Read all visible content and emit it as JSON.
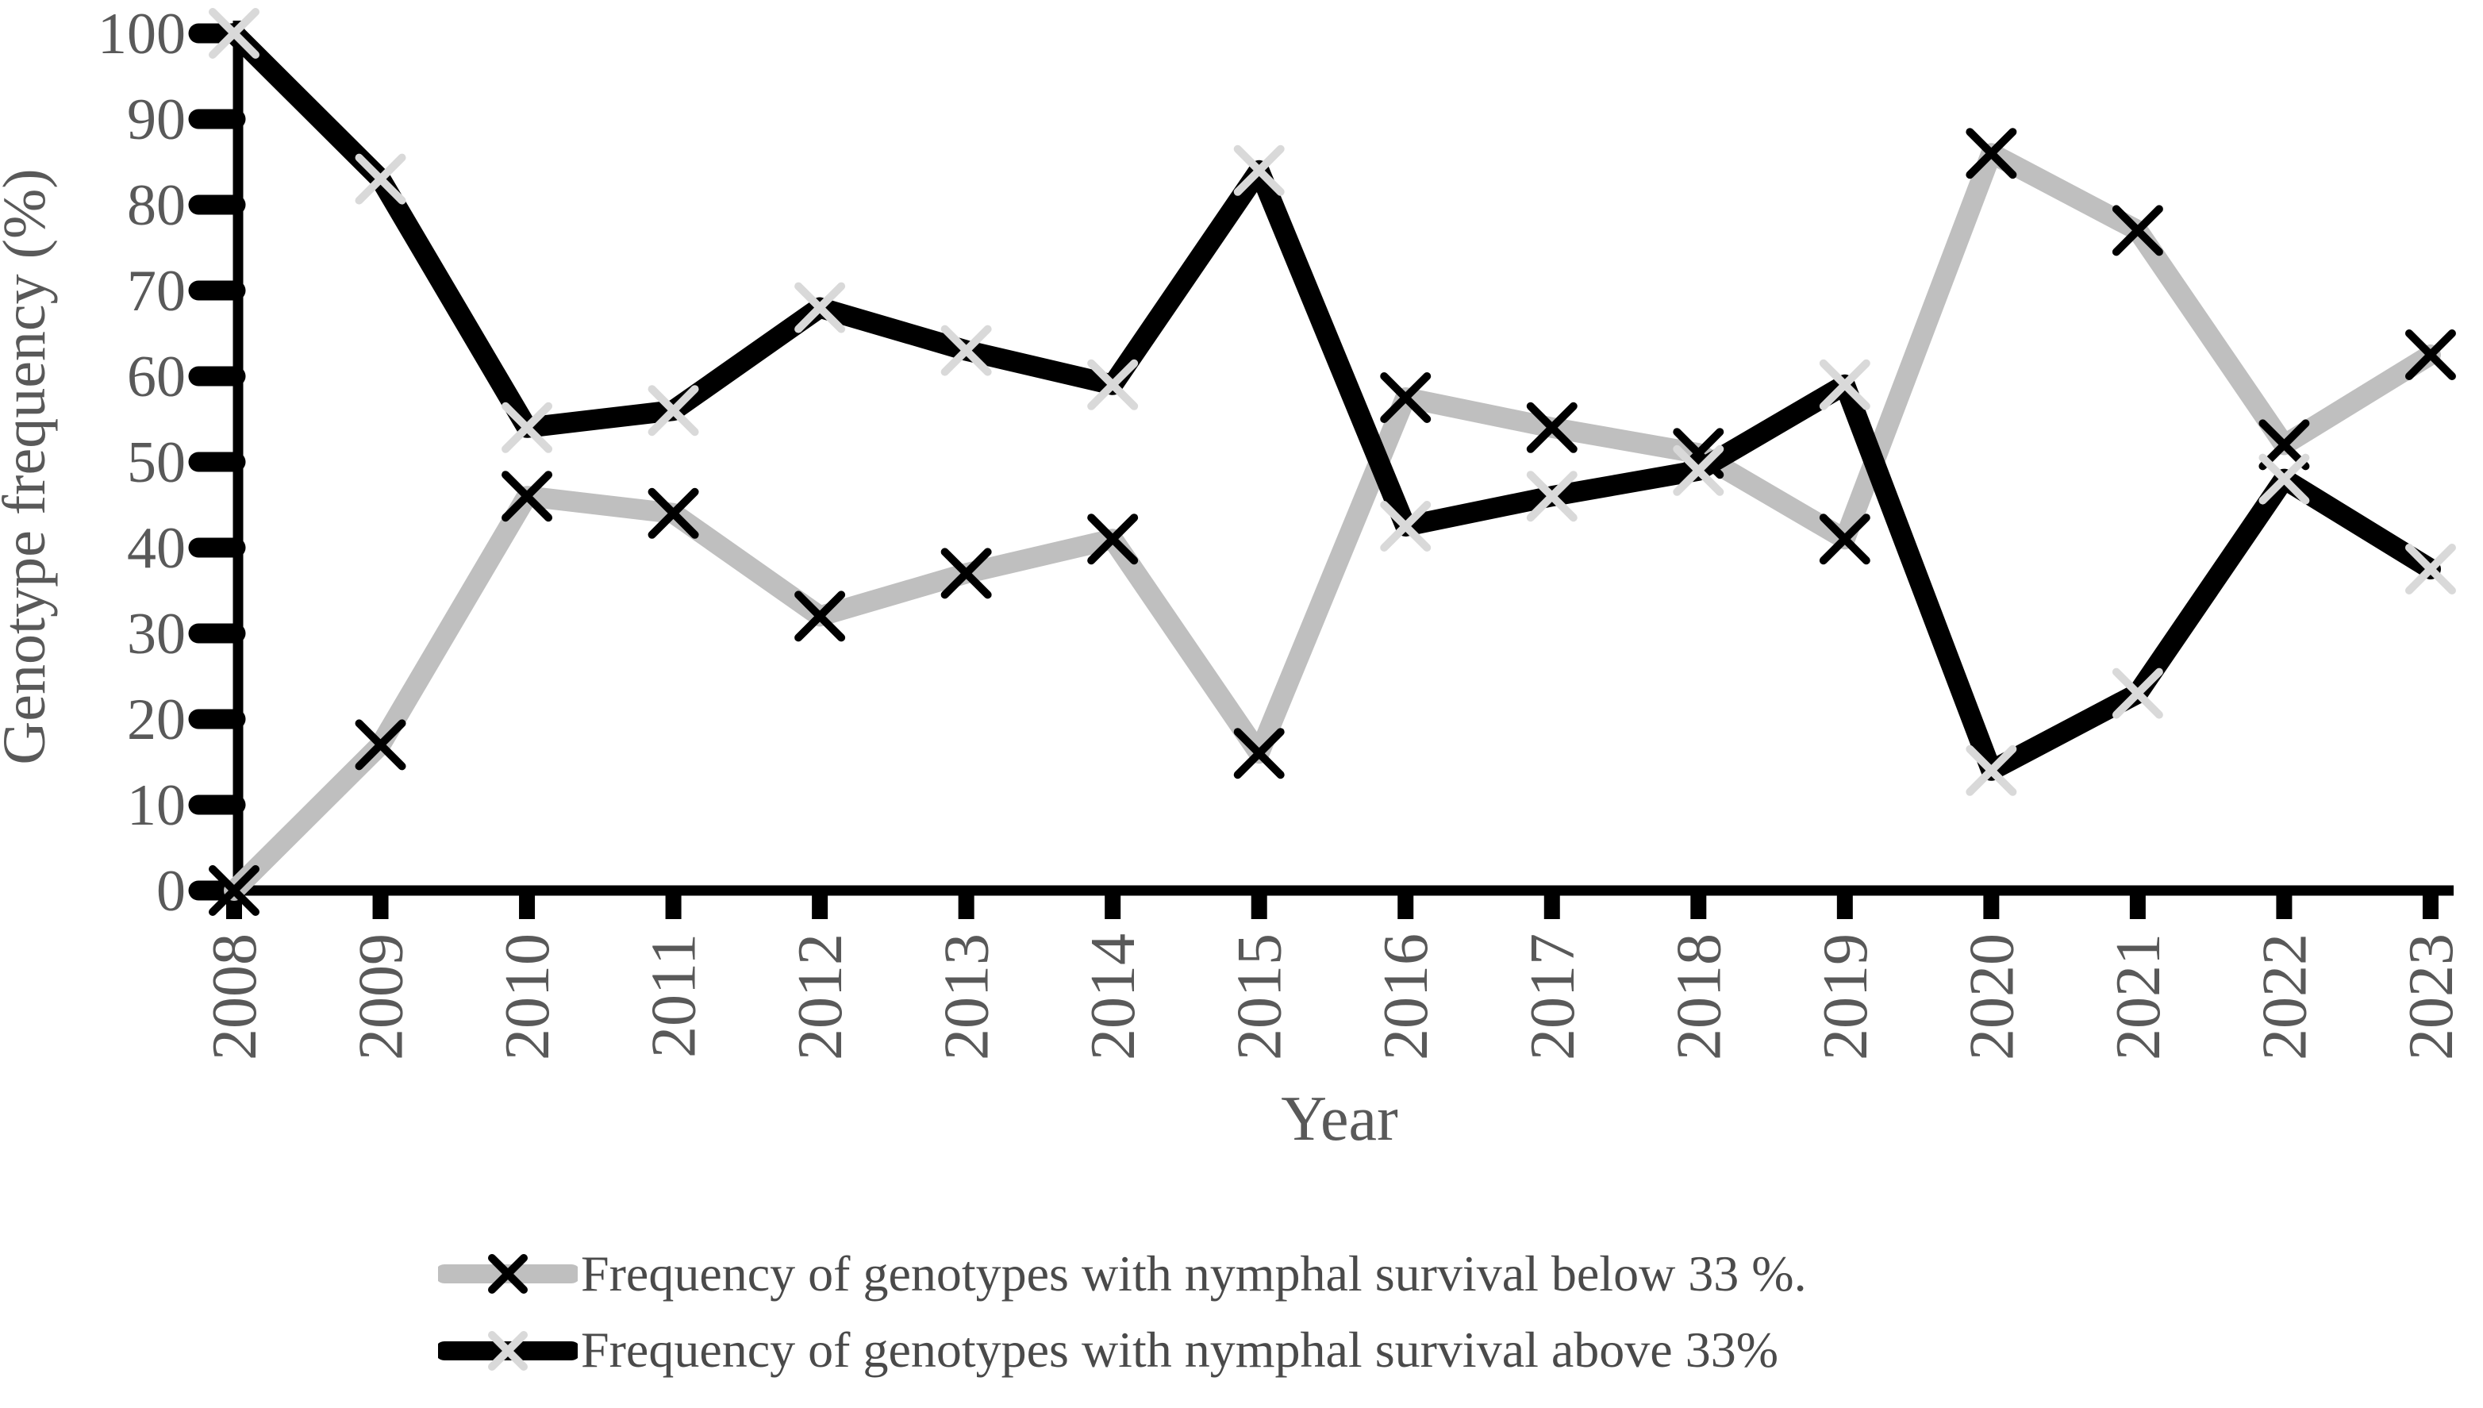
{
  "chart_data": {
    "type": "line",
    "title": "",
    "xlabel": "Year",
    "ylabel": "Genotype frequency (%)",
    "ylim": [
      0,
      100
    ],
    "y_ticks": [
      0,
      10,
      20,
      30,
      40,
      50,
      60,
      70,
      80,
      90,
      100
    ],
    "grid": false,
    "legend_position": "bottom",
    "categories": [
      "2008",
      "2009",
      "2010",
      "2011",
      "2012",
      "2013",
      "2014",
      "2015",
      "2016",
      "2017",
      "2018",
      "2019",
      "2020",
      "2021",
      "2022",
      "2023"
    ],
    "series": [
      {
        "label": "Frequency of genotypes with nymphal survival below 33 %.",
        "color": "#bfbfbf",
        "marker": "x",
        "marker_color": "#000000",
        "values": [
          0,
          17,
          46,
          44,
          32,
          37,
          41,
          16,
          57.5,
          54,
          51,
          41,
          86,
          77,
          52,
          62.5
        ]
      },
      {
        "label": "Frequency of genotypes with nymphal survival above 33%",
        "color": "#000000",
        "marker": "x",
        "marker_color": "#d9d9d9",
        "values": [
          100,
          83,
          54,
          56,
          68,
          63,
          59,
          84,
          42.5,
          46,
          49,
          59,
          14,
          23,
          48,
          37.5
        ]
      }
    ],
    "text_color": "#595959"
  }
}
